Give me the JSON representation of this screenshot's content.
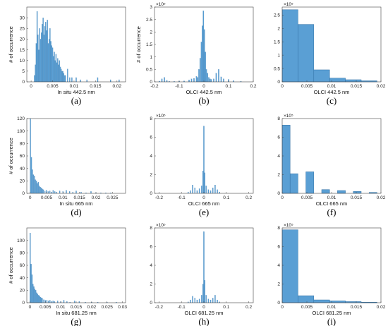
{
  "chart_data": [
    {
      "panel": "(a)",
      "type": "bar",
      "xlabel": "In situ 442.5 nm",
      "ylabel": "# of occurrence",
      "exponent": "",
      "xlim": [
        -0.001,
        0.022
      ],
      "ylim": [
        0,
        35
      ],
      "xticks": [
        0,
        0.005,
        0.01,
        0.015,
        0.02
      ],
      "xticklabels": [
        "0",
        "0.005",
        "0.01",
        "0.015",
        "0.02"
      ],
      "yticks": [
        0,
        5,
        10,
        15,
        20,
        25,
        30
      ],
      "yticklabels": [
        "0",
        "5",
        "10",
        "15",
        "20",
        "25",
        "30"
      ],
      "bar_width": 0.0002,
      "x": [
        0.0008,
        0.001,
        0.0012,
        0.0014,
        0.0016,
        0.0018,
        0.002,
        0.0022,
        0.0024,
        0.0026,
        0.0028,
        0.003,
        0.0032,
        0.0034,
        0.0036,
        0.0038,
        0.004,
        0.0042,
        0.0044,
        0.0046,
        0.0048,
        0.005,
        0.0052,
        0.0054,
        0.0056,
        0.0058,
        0.006,
        0.0062,
        0.0064,
        0.0066,
        0.0068,
        0.007,
        0.0072,
        0.0074,
        0.0076,
        0.0078,
        0.008,
        0.0085,
        0.009,
        0.0095,
        0.0105,
        0.0115,
        0.013,
        0.0155,
        0.0185,
        0.0205
      ],
      "values": [
        3,
        8,
        18,
        33,
        22,
        15,
        25,
        20,
        23,
        27,
        30,
        22,
        26,
        28,
        24,
        29,
        18,
        20,
        25,
        19,
        17,
        16,
        12,
        14,
        10,
        13,
        9,
        11,
        8,
        10,
        7,
        6,
        5,
        5,
        4,
        3,
        3,
        6,
        2,
        2,
        2,
        1,
        1,
        2,
        1,
        1
      ]
    },
    {
      "panel": "(b)",
      "type": "bar",
      "xlabel": "OLCI 442.5 nm",
      "ylabel": "# of occurrence",
      "exponent": "×10⁵",
      "xlim": [
        -0.2,
        0.2
      ],
      "ylim": [
        0,
        3
      ],
      "xticks": [
        -0.2,
        -0.1,
        0,
        0.1,
        0.2
      ],
      "xticklabels": [
        "-0.2",
        "-0.1",
        "0",
        "0.1",
        "0.2"
      ],
      "yticks": [
        0,
        0.5,
        1,
        1.5,
        2,
        2.5,
        3
      ],
      "yticklabels": [
        "0",
        "0.5",
        "1",
        "1.5",
        "2",
        "2.5",
        "3"
      ],
      "bar_width": 0.004,
      "x": [
        -0.18,
        -0.17,
        -0.16,
        -0.15,
        -0.14,
        -0.12,
        -0.1,
        -0.08,
        -0.06,
        -0.05,
        -0.04,
        -0.03,
        -0.025,
        -0.02,
        -0.015,
        -0.01,
        -0.006,
        -0.002,
        0.002,
        0.006,
        0.01,
        0.015,
        0.02,
        0.025,
        0.03,
        0.04,
        0.05,
        0.06,
        0.07,
        0.08,
        0.1,
        0.12,
        0.15
      ],
      "values": [
        0.03,
        0.12,
        0.18,
        0.06,
        0.02,
        0.02,
        0.03,
        0.04,
        0.08,
        0.12,
        0.14,
        0.22,
        0.18,
        0.5,
        0.95,
        1.6,
        2.25,
        2.85,
        2.1,
        1.2,
        0.5,
        0.35,
        0.18,
        0.12,
        0.1,
        0.12,
        0.35,
        0.5,
        0.2,
        0.12,
        0.1,
        0.05,
        0.02
      ]
    },
    {
      "panel": "(c)",
      "type": "bar",
      "xlabel": "OLCI 442.5 nm",
      "ylabel": "",
      "exponent": "×10⁵",
      "xlim": [
        0,
        0.02
      ],
      "ylim": [
        0,
        2.8
      ],
      "xticks": [
        0,
        0.005,
        0.01,
        0.015,
        0.02
      ],
      "xticklabels": [
        "0",
        "0.005",
        "0.01",
        "0.015",
        "0.02"
      ],
      "yticks": [
        0,
        0.5,
        1,
        1.5,
        2,
        2.5
      ],
      "yticklabels": [
        "0",
        "0.5",
        "1",
        "1.5",
        "2",
        "2.5"
      ],
      "bar_width": 0.0032,
      "x": [
        0.0016,
        0.0048,
        0.008,
        0.0112,
        0.0144,
        0.0176
      ],
      "values": [
        2.7,
        2.15,
        0.45,
        0.14,
        0.08,
        0.04
      ]
    },
    {
      "panel": "(d)",
      "type": "bar",
      "xlabel": "In situ 665 nm",
      "ylabel": "# of occurrence",
      "exponent": "",
      "xlim": [
        -0.001,
        0.029
      ],
      "ylim": [
        0,
        120
      ],
      "xticks": [
        0,
        0.005,
        0.01,
        0.015,
        0.02,
        0.025
      ],
      "xticklabels": [
        "0",
        "0.005",
        "0.01",
        "0.015",
        "0.02",
        "0.025"
      ],
      "yticks": [
        0,
        20,
        40,
        60,
        80,
        100,
        120
      ],
      "yticklabels": [
        "0",
        "20",
        "40",
        "60",
        "80",
        "100",
        "120"
      ],
      "bar_width": 0.00025,
      "x": [
        0.0001,
        0.0004,
        0.0007,
        0.001,
        0.0013,
        0.0016,
        0.0019,
        0.0022,
        0.0025,
        0.0028,
        0.0031,
        0.0034,
        0.0037,
        0.004,
        0.0045,
        0.005,
        0.0055,
        0.006,
        0.0065,
        0.007,
        0.0075,
        0.008,
        0.009,
        0.01,
        0.011,
        0.012,
        0.013,
        0.014,
        0.0155,
        0.017,
        0.0185,
        0.02,
        0.0215,
        0.023,
        0.0245
      ],
      "values": [
        120,
        58,
        38,
        30,
        28,
        22,
        20,
        16,
        18,
        12,
        10,
        9,
        7,
        6,
        4,
        5,
        3,
        4,
        2,
        5,
        3,
        2,
        4,
        3,
        5,
        3,
        2,
        4,
        2,
        1,
        3,
        1,
        1,
        1,
        1
      ]
    },
    {
      "panel": "(e)",
      "type": "bar",
      "xlabel": "OLCI 665 nm",
      "ylabel": "",
      "exponent": "×10⁵",
      "xlim": [
        -0.22,
        0.22
      ],
      "ylim": [
        0,
        8
      ],
      "xticks": [
        -0.2,
        -0.1,
        0,
        0.1,
        0.2
      ],
      "xticklabels": [
        "-0.2",
        "-0.1",
        "0",
        "0.1",
        "0.2"
      ],
      "yticks": [
        0,
        2,
        4,
        6,
        8
      ],
      "yticklabels": [
        "0",
        "2",
        "4",
        "6",
        "8"
      ],
      "bar_width": 0.004,
      "x": [
        -0.07,
        -0.06,
        -0.05,
        -0.04,
        -0.03,
        -0.02,
        -0.01,
        -0.004,
        0,
        0.004,
        0.01,
        0.02,
        0.03,
        0.04,
        0.05,
        0.06,
        0.07
      ],
      "values": [
        0.15,
        0.3,
        0.9,
        0.6,
        0.3,
        0.5,
        0.8,
        2.4,
        7.2,
        2.2,
        0.8,
        0.4,
        0.3,
        0.6,
        0.9,
        0.4,
        0.15
      ]
    },
    {
      "panel": "(f)",
      "type": "bar",
      "xlabel": "OLCI 665 nm",
      "ylabel": "",
      "exponent": "×10⁵",
      "xlim": [
        0,
        0.02
      ],
      "ylim": [
        0,
        8
      ],
      "xticks": [
        0,
        0.005,
        0.01,
        0.015,
        0.02
      ],
      "xticklabels": [
        "0",
        "0.005",
        "0.01",
        "0.015",
        "0.02"
      ],
      "yticks": [
        0,
        2,
        4,
        6,
        8
      ],
      "yticklabels": [
        "0",
        "2",
        "4",
        "6",
        "8"
      ],
      "bar_width": 0.0016,
      "x": [
        0.0008,
        0.0024,
        0.0056,
        0.0088,
        0.012,
        0.0152,
        0.0184
      ],
      "values": [
        7.3,
        2.1,
        2.3,
        0.4,
        0.3,
        0.2,
        0.1
      ]
    },
    {
      "panel": "(g)",
      "type": "bar",
      "xlabel": "In situ 681.25 nm",
      "ylabel": "# of occurrence",
      "exponent": "",
      "xlim": [
        -0.001,
        0.031
      ],
      "ylim": [
        0,
        120
      ],
      "xticks": [
        0,
        0.005,
        0.01,
        0.015,
        0.02,
        0.025,
        0.03
      ],
      "xticklabels": [
        "0",
        "0.005",
        "0.01",
        "0.015",
        "0.02",
        "0.025",
        "0.03"
      ],
      "yticks": [
        0,
        20,
        40,
        60,
        80,
        100
      ],
      "yticklabels": [
        "0",
        "20",
        "40",
        "60",
        "80",
        "100"
      ],
      "bar_width": 0.00028,
      "x": [
        0.0001,
        0.0004,
        0.0007,
        0.001,
        0.0013,
        0.0016,
        0.0019,
        0.0022,
        0.0025,
        0.0028,
        0.0031,
        0.0034,
        0.0037,
        0.004,
        0.0045,
        0.005,
        0.0055,
        0.006,
        0.0065,
        0.007,
        0.0075,
        0.008,
        0.009,
        0.01,
        0.011,
        0.012,
        0.013,
        0.0145,
        0.016,
        0.018,
        0.02,
        0.022,
        0.025,
        0.028
      ],
      "values": [
        112,
        62,
        45,
        30,
        26,
        22,
        20,
        16,
        14,
        12,
        11,
        9,
        8,
        7,
        5,
        4,
        4,
        3,
        4,
        2,
        3,
        2,
        3,
        2,
        4,
        2,
        1,
        3,
        2,
        1,
        1,
        1,
        1,
        1
      ]
    },
    {
      "panel": "(h)",
      "type": "bar",
      "xlabel": "OLCI 681.25 nm",
      "ylabel": "",
      "exponent": "×10⁵",
      "xlim": [
        -0.22,
        0.22
      ],
      "ylim": [
        0,
        8
      ],
      "xticks": [
        -0.2,
        -0.1,
        0,
        0.1,
        0.2
      ],
      "xticklabels": [
        "-0.2",
        "-0.1",
        "0",
        "0.1",
        "0.2"
      ],
      "yticks": [
        0,
        2,
        4,
        6,
        8
      ],
      "yticklabels": [
        "0",
        "2",
        "4",
        "6",
        "8"
      ],
      "bar_width": 0.004,
      "x": [
        -0.07,
        -0.06,
        -0.05,
        -0.04,
        -0.03,
        -0.02,
        -0.01,
        -0.004,
        0,
        0.004,
        0.01,
        0.02,
        0.03,
        0.04,
        0.05,
        0.06,
        0.07
      ],
      "values": [
        0.1,
        0.3,
        0.7,
        0.5,
        0.3,
        0.4,
        0.8,
        2.0,
        7.6,
        2.4,
        0.8,
        0.4,
        0.3,
        0.5,
        0.8,
        0.3,
        0.1
      ]
    },
    {
      "panel": "(i)",
      "type": "bar",
      "xlabel": "OLCI 681.25 nm",
      "ylabel": "",
      "exponent": "×10⁵",
      "xlim": [
        0,
        0.02
      ],
      "ylim": [
        0,
        8
      ],
      "xticks": [
        0,
        0.005,
        0.01,
        0.015,
        0.02
      ],
      "xticklabels": [
        "0",
        "0.005",
        "0.01",
        "0.015",
        "0.02"
      ],
      "yticks": [
        0,
        2,
        4,
        6,
        8
      ],
      "yticklabels": [
        "0",
        "2",
        "4",
        "6",
        "8"
      ],
      "bar_width": 0.0032,
      "x": [
        0.0016,
        0.0048,
        0.008,
        0.0112,
        0.0144,
        0.0176
      ],
      "values": [
        7.8,
        0.75,
        0.3,
        0.2,
        0.12,
        0.06
      ]
    }
  ],
  "colors": {
    "bar_fill": "#5a9fd4",
    "bar_edge": "#2f6fa3"
  }
}
